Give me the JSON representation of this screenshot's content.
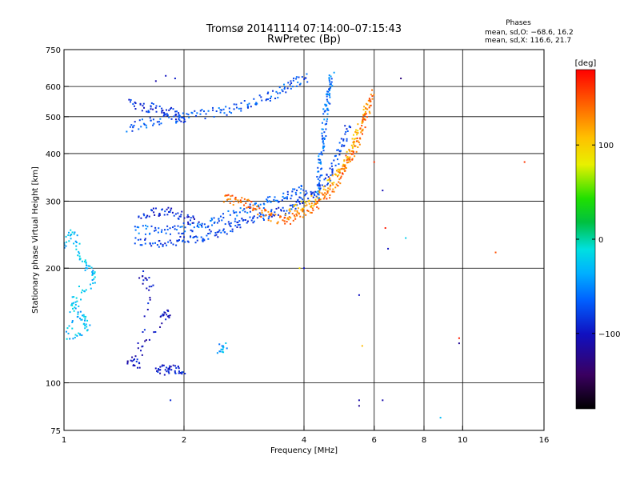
{
  "chart_data": {
    "type": "scatter",
    "title": "Tromsø 20141114 07:14:00–07:15:43",
    "subtitle": "RwPretec (Bp)",
    "stats": {
      "heading": "Phases",
      "line1": "mean, sd,O: −68.6, 16.2",
      "line2": "mean, sd,X: 116.6, 21.7"
    },
    "xlabel": "Frequency [MHz]",
    "ylabel": "Stationary phase Virtual Height [km]",
    "x_scale": "log",
    "y_scale": "log",
    "xlim": [
      1,
      16
    ],
    "ylim": [
      75,
      750
    ],
    "x_ticks": [
      {
        "value": 1,
        "label": "1"
      },
      {
        "value": 2,
        "label": "2"
      },
      {
        "value": 4,
        "label": "4"
      },
      {
        "value": 6,
        "label": "6"
      },
      {
        "value": 8,
        "label": "8"
      },
      {
        "value": 10,
        "label": "10"
      },
      {
        "value": 16,
        "label": "16"
      }
    ],
    "y_ticks": [
      {
        "value": 75,
        "label": "75"
      },
      {
        "value": 100,
        "label": "100"
      },
      {
        "value": 200,
        "label": "200"
      },
      {
        "value": 300,
        "label": "300"
      },
      {
        "value": 400,
        "label": "400"
      },
      {
        "value": 500,
        "label": "500"
      },
      {
        "value": 600,
        "label": "600"
      },
      {
        "value": 750,
        "label": "750"
      }
    ],
    "x_gridlines": [
      2,
      4,
      6,
      8,
      10
    ],
    "y_gridlines": [
      100,
      200,
      300,
      400,
      500,
      600
    ],
    "grid": true,
    "colorbar": {
      "label": "[deg]",
      "range": [
        -180,
        180
      ],
      "ticks": [
        {
          "value": 100,
          "label": "100"
        },
        {
          "value": 0,
          "label": "0"
        },
        {
          "value": -100,
          "label": "−100"
        }
      ],
      "colormap": "rainbow"
    },
    "traces": [
      {
        "id": "o-low",
        "phase_deg": -80,
        "points": [
          [
            1.5,
            235
          ],
          [
            1.7,
            233
          ],
          [
            1.9,
            234
          ],
          [
            2.1,
            238
          ],
          [
            2.3,
            244
          ],
          [
            2.5,
            252
          ],
          [
            2.7,
            260
          ],
          [
            2.9,
            268
          ],
          [
            3.2,
            276
          ],
          [
            3.5,
            282
          ],
          [
            3.8,
            292
          ],
          [
            4.0,
            305
          ],
          [
            4.3,
            320
          ],
          [
            4.6,
            345
          ],
          [
            4.8,
            380
          ],
          [
            5.0,
            430
          ],
          [
            5.2,
            480
          ]
        ]
      },
      {
        "id": "o-low-2",
        "phase_deg": -65,
        "points": [
          [
            1.5,
            255
          ],
          [
            1.7,
            252
          ],
          [
            1.9,
            252
          ],
          [
            2.1,
            256
          ],
          [
            2.3,
            262
          ],
          [
            2.5,
            270
          ],
          [
            2.8,
            282
          ],
          [
            3.1,
            295
          ],
          [
            3.4,
            302
          ],
          [
            3.7,
            312
          ],
          [
            4.0,
            325
          ]
        ]
      },
      {
        "id": "o-low-3",
        "phase_deg": -90,
        "points": [
          [
            1.55,
            270
          ],
          [
            1.7,
            280
          ],
          [
            1.85,
            285
          ],
          [
            2.0,
            270
          ],
          [
            2.2,
            266
          ]
        ]
      },
      {
        "id": "o-upper",
        "phase_deg": -70,
        "points": [
          [
            1.45,
            470
          ],
          [
            1.6,
            480
          ],
          [
            1.8,
            492
          ],
          [
            2.0,
            500
          ],
          [
            2.3,
            510
          ],
          [
            2.6,
            520
          ],
          [
            2.9,
            540
          ],
          [
            3.2,
            560
          ],
          [
            3.5,
            585
          ],
          [
            3.8,
            615
          ],
          [
            4.1,
            640
          ]
        ]
      },
      {
        "id": "o-upper-2",
        "phase_deg": -85,
        "points": [
          [
            1.45,
            540
          ],
          [
            1.6,
            530
          ],
          [
            1.75,
            525
          ],
          [
            1.9,
            505
          ],
          [
            2.0,
            490
          ]
        ]
      },
      {
        "id": "o-cusp",
        "phase_deg": -60,
        "points": [
          [
            4.3,
            300
          ],
          [
            4.35,
            340
          ],
          [
            4.4,
            380
          ],
          [
            4.45,
            420
          ],
          [
            4.5,
            470
          ],
          [
            4.55,
            520
          ],
          [
            4.6,
            560
          ],
          [
            4.65,
            600
          ],
          [
            4.7,
            640
          ]
        ]
      },
      {
        "id": "x-trace",
        "phase_deg": 110,
        "points": [
          [
            3.6,
            275
          ],
          [
            3.9,
            288
          ],
          [
            4.2,
            300
          ],
          [
            4.5,
            318
          ],
          [
            4.8,
            345
          ],
          [
            5.0,
            370
          ],
          [
            5.2,
            400
          ],
          [
            5.4,
            440
          ],
          [
            5.6,
            490
          ],
          [
            5.8,
            540
          ]
        ]
      },
      {
        "id": "x-trace-2",
        "phase_deg": 140,
        "points": [
          [
            2.5,
            305
          ],
          [
            2.7,
            300
          ],
          [
            2.9,
            296
          ],
          [
            3.1,
            282
          ],
          [
            3.3,
            270
          ],
          [
            3.6,
            265
          ],
          [
            3.9,
            278
          ],
          [
            4.2,
            290
          ],
          [
            4.5,
            305
          ],
          [
            4.8,
            330
          ],
          [
            5.0,
            360
          ],
          [
            5.2,
            390
          ],
          [
            5.4,
            420
          ],
          [
            5.6,
            470
          ],
          [
            5.8,
            520
          ],
          [
            6.0,
            600
          ]
        ]
      },
      {
        "id": "noise-low",
        "phase_deg": -30,
        "points": [
          [
            1.0,
            225
          ],
          [
            1.05,
            250
          ],
          [
            1.1,
            215
          ],
          [
            1.15,
            200
          ],
          [
            1.2,
            190
          ],
          [
            1.05,
            160
          ],
          [
            1.1,
            150
          ],
          [
            1.15,
            140
          ],
          [
            1.02,
            130
          ],
          [
            1.08,
            180
          ]
        ]
      },
      {
        "id": "e-layer",
        "phase_deg": -95,
        "points": [
          [
            1.7,
            108
          ],
          [
            1.8,
            108
          ],
          [
            1.9,
            108
          ],
          [
            2.0,
            109
          ]
        ]
      },
      {
        "id": "e-layer-2",
        "phase_deg": -40,
        "points": [
          [
            2.45,
            123
          ],
          [
            2.55,
            124
          ]
        ]
      },
      {
        "id": "mid-scatter",
        "phase_deg": -100,
        "points": [
          [
            1.75,
            153
          ],
          [
            1.85,
            151
          ],
          [
            1.45,
            115
          ],
          [
            1.55,
            112
          ],
          [
            1.65,
            180
          ],
          [
            1.55,
            195
          ]
        ]
      }
    ],
    "isolated_points": [
      {
        "x": 1.7,
        "y": 620,
        "phase_deg": -110
      },
      {
        "x": 1.8,
        "y": 640,
        "phase_deg": -100
      },
      {
        "x": 1.9,
        "y": 630,
        "phase_deg": -95
      },
      {
        "x": 6.3,
        "y": 320,
        "phase_deg": -105
      },
      {
        "x": 6.4,
        "y": 255,
        "phase_deg": 170
      },
      {
        "x": 6.5,
        "y": 225,
        "phase_deg": -100
      },
      {
        "x": 7.2,
        "y": 240,
        "phase_deg": -20
      },
      {
        "x": 7.0,
        "y": 630,
        "phase_deg": -130
      },
      {
        "x": 5.5,
        "y": 170,
        "phase_deg": -100
      },
      {
        "x": 5.6,
        "y": 125,
        "phase_deg": 110
      },
      {
        "x": 5.5,
        "y": 90,
        "phase_deg": -110
      },
      {
        "x": 5.5,
        "y": 87,
        "phase_deg": -120
      },
      {
        "x": 6.3,
        "y": 90,
        "phase_deg": -110
      },
      {
        "x": 9.8,
        "y": 131,
        "phase_deg": 170
      },
      {
        "x": 9.8,
        "y": 127,
        "phase_deg": -120
      },
      {
        "x": 8.8,
        "y": 81,
        "phase_deg": -30
      },
      {
        "x": 12.1,
        "y": 220,
        "phase_deg": 150
      },
      {
        "x": 14.3,
        "y": 380,
        "phase_deg": 160
      },
      {
        "x": 6.0,
        "y": 380,
        "phase_deg": 160
      },
      {
        "x": 1.85,
        "y": 90,
        "phase_deg": -90
      },
      {
        "x": 4.0,
        "y": 200,
        "phase_deg": -100
      },
      {
        "x": 3.9,
        "y": 200,
        "phase_deg": 90
      }
    ]
  }
}
